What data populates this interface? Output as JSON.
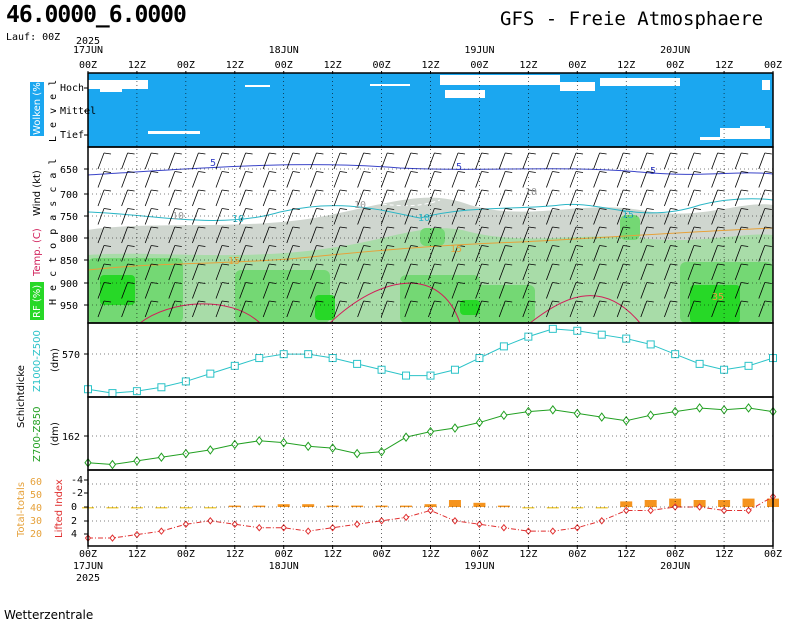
{
  "header": {
    "coords": "46.0000_6.0000",
    "model": "GFS - Freie Atmosphaere",
    "run": "Lauf: 00Z",
    "year": "2025"
  },
  "footer": "Wetterzentrale",
  "colors": {
    "cloud_bg": "#1ba7f0",
    "rh_dark": "#27d827",
    "rh_mid": "#74d874",
    "rh_light": "#a8dca8",
    "gray_fill": "#cfd6cf",
    "thickness_line": "#2bc3c8",
    "z700_line": "#22a022",
    "li_line": "#e03030",
    "tt_bar": "#f5941e",
    "isotherm_blue": "#3a44c8",
    "isotherm_cyan": "#2bb6c6",
    "isotherm_orange": "#e6a13a",
    "isotherm_red": "#d11f5a"
  },
  "time_axis": {
    "top_days": [
      "17JUN",
      "18JUN",
      "19JUN",
      "20JUN"
    ],
    "ticks": [
      "00Z",
      "12Z",
      "00Z",
      "12Z",
      "00Z",
      "12Z",
      "00Z",
      "12Z"
    ],
    "bottom_days": [
      "17JUN",
      "18JUN",
      "19JUN",
      "20JUN"
    ]
  },
  "chart_data": [
    {
      "type": "heatmap",
      "title": "Wolken (%)",
      "ylabel": "L e v e l",
      "levels": [
        "Hoch",
        "Mittel",
        "Tief"
      ]
    },
    {
      "type": "heatmap",
      "ylabel": "H e c t o p a s c a l",
      "side_labels": [
        "Wind (kt)",
        "Temp. (C)",
        "RF (%)"
      ],
      "y_ticks": [
        850,
        900,
        950,
        650,
        700,
        750,
        800
      ],
      "isotherm_labels": [
        "5",
        "5",
        "5",
        "10",
        "10",
        "10",
        "10",
        "10",
        "15",
        "15",
        "15",
        "35"
      ]
    },
    {
      "type": "line",
      "name": "Z1000-Z500",
      "unit_label": "(dm)",
      "side_label": "Schichtdicke",
      "y_tick": "570",
      "x_hours": [
        0,
        6,
        12,
        18,
        24,
        30,
        36,
        42,
        48,
        54,
        60,
        66,
        72,
        78,
        84,
        90,
        96,
        102,
        108,
        114,
        120,
        126,
        132,
        138,
        144,
        150,
        156,
        162,
        168
      ],
      "values": [
        562,
        561,
        561.5,
        562.5,
        564,
        566,
        568,
        570,
        571,
        571,
        570,
        568.5,
        567,
        565.5,
        565.5,
        567,
        570,
        573,
        575.5,
        577.5,
        577,
        576,
        575,
        573.5,
        571,
        568.5,
        567,
        568,
        570
      ]
    },
    {
      "type": "line",
      "name": "Z700-Z850",
      "unit_label": "(dm)",
      "y_tick": "162",
      "x_hours": [
        0,
        6,
        12,
        18,
        24,
        30,
        36,
        42,
        48,
        54,
        60,
        66,
        72,
        78,
        84,
        90,
        96,
        102,
        108,
        114,
        120,
        126,
        132,
        138,
        144,
        150,
        156,
        162,
        168
      ],
      "values": [
        153,
        152.5,
        153.5,
        154.5,
        155.5,
        156.5,
        158,
        159,
        158.5,
        157.5,
        157,
        155.5,
        156,
        160,
        161.5,
        162.5,
        164,
        166,
        167,
        167.5,
        166.5,
        165.5,
        164.5,
        166,
        167,
        168,
        167.5,
        168,
        167
      ]
    },
    {
      "type": "bar",
      "series": [
        {
          "name": "Lifted Index",
          "unit": "",
          "x_hours": [
            0,
            6,
            12,
            18,
            24,
            30,
            36,
            42,
            48,
            54,
            60,
            66,
            72,
            78,
            84,
            90,
            96,
            102,
            108,
            114,
            120,
            126,
            132,
            138,
            144,
            150,
            156,
            162,
            168
          ],
          "values": [
            4.5,
            4.5,
            4,
            3.5,
            2.5,
            2,
            2.5,
            3,
            3,
            3.5,
            3,
            2.5,
            2,
            1.5,
            0.5,
            2,
            2.5,
            3,
            3.5,
            3.5,
            3,
            2,
            0.5,
            0.5,
            0,
            0,
            0.5,
            0.5,
            -1.5
          ]
        },
        {
          "name": "Total-totals",
          "x_hours": [
            0,
            6,
            12,
            18,
            24,
            30,
            36,
            42,
            48,
            54,
            60,
            66,
            72,
            78,
            84,
            90,
            96,
            102,
            108,
            114,
            120,
            126,
            132,
            138,
            144,
            150,
            156,
            162,
            168
          ],
          "values": [
            39,
            40,
            40,
            40,
            40,
            40,
            41,
            41,
            42,
            42,
            41,
            41,
            41,
            41,
            42,
            45,
            43,
            41,
            40,
            39,
            40,
            40,
            44,
            45,
            46,
            45,
            45,
            46,
            46
          ]
        }
      ],
      "left_axis": {
        "label": "Total-totals",
        "ticks": [
          "60",
          "50",
          "40",
          "30",
          "20"
        ]
      },
      "right_axis": {
        "label": "Lifted Index",
        "ticks": [
          "-4",
          "-2",
          "0",
          "2",
          "4"
        ]
      }
    }
  ]
}
